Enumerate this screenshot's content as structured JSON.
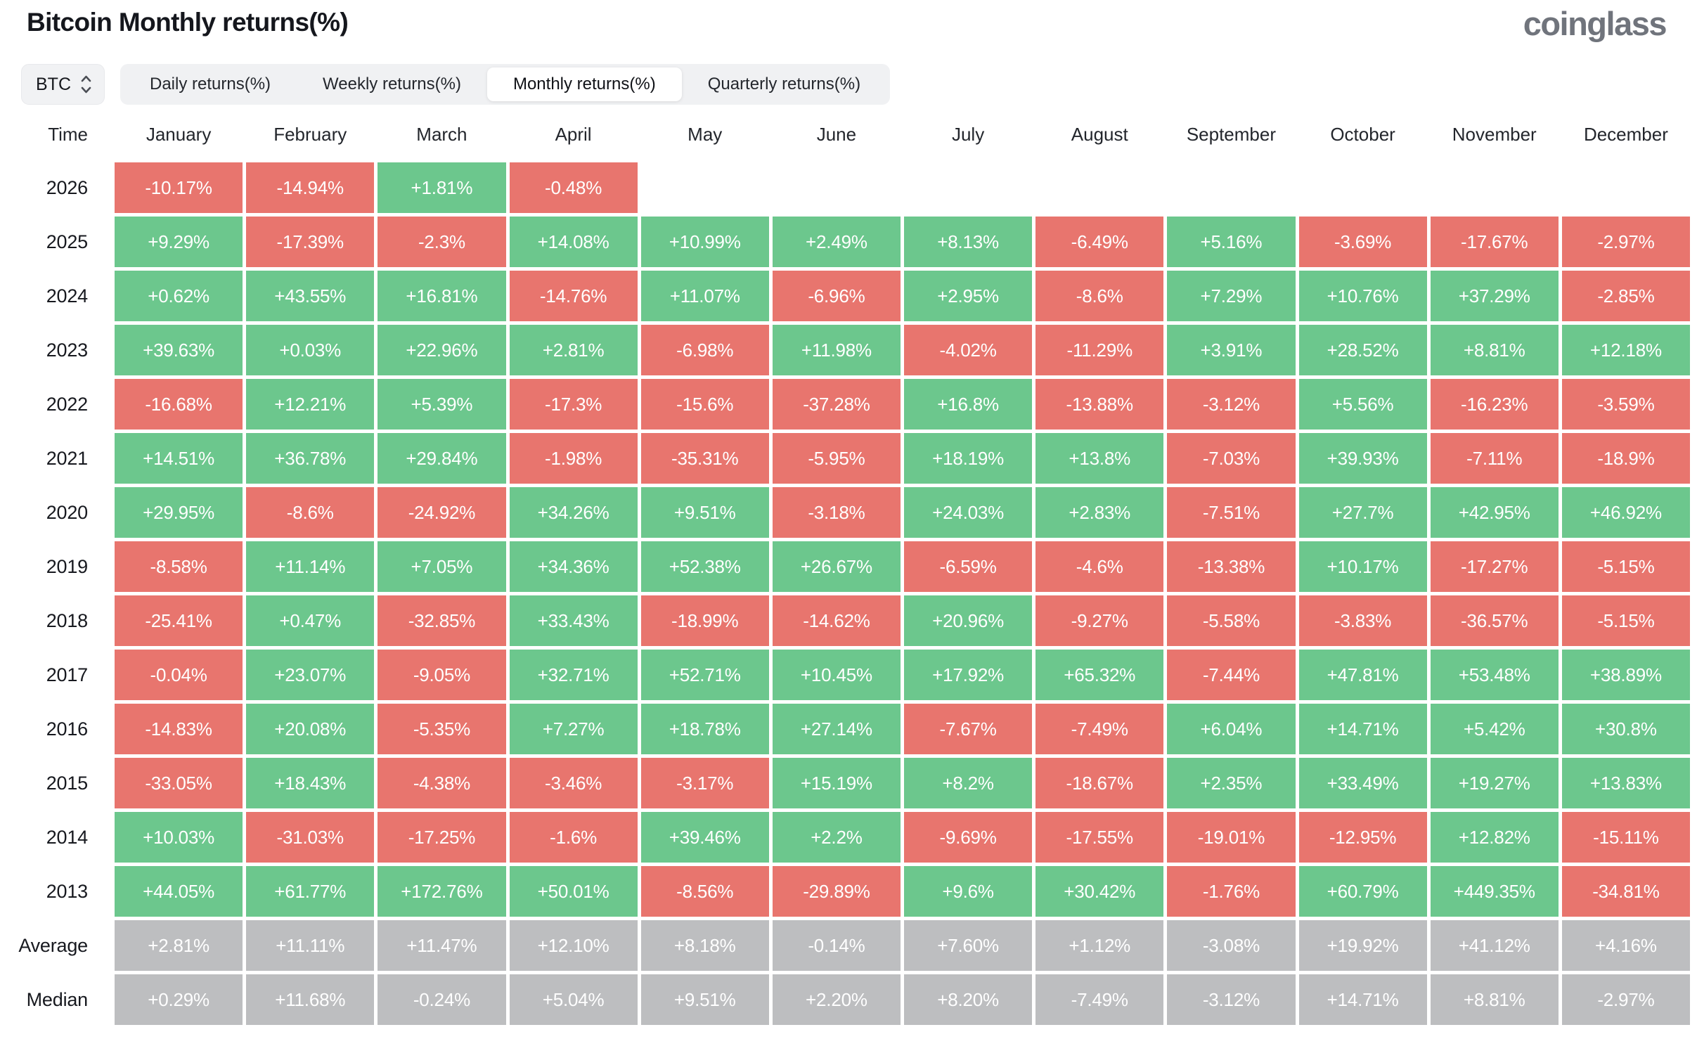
{
  "page": {
    "title": "Bitcoin Monthly returns(%)",
    "logo": "coinglass"
  },
  "controls": {
    "symbol_select": {
      "value": "BTC"
    },
    "tabs": [
      {
        "label": "Daily returns(%)",
        "active": false
      },
      {
        "label": "Weekly returns(%)",
        "active": false
      },
      {
        "label": "Monthly returns(%)",
        "active": true
      },
      {
        "label": "Quarterly returns(%)",
        "active": false
      }
    ]
  },
  "chart_data": {
    "type": "heatmap",
    "title": "Bitcoin Monthly returns(%)",
    "unit": "%",
    "colors": {
      "positive": "#6cc78d",
      "negative": "#e8756e",
      "summary": "#bdbec0"
    },
    "columns": [
      "Time",
      "January",
      "February",
      "March",
      "April",
      "May",
      "June",
      "July",
      "August",
      "September",
      "October",
      "November",
      "December"
    ],
    "rows": [
      {
        "label": "2026",
        "summary": false,
        "values": [
          "-10.17%",
          "-14.94%",
          "+1.81%",
          "-0.48%",
          "",
          "",
          "",
          "",
          "",
          "",
          "",
          ""
        ]
      },
      {
        "label": "2025",
        "summary": false,
        "values": [
          "+9.29%",
          "-17.39%",
          "-2.3%",
          "+14.08%",
          "+10.99%",
          "+2.49%",
          "+8.13%",
          "-6.49%",
          "+5.16%",
          "-3.69%",
          "-17.67%",
          "-2.97%"
        ]
      },
      {
        "label": "2024",
        "summary": false,
        "values": [
          "+0.62%",
          "+43.55%",
          "+16.81%",
          "-14.76%",
          "+11.07%",
          "-6.96%",
          "+2.95%",
          "-8.6%",
          "+7.29%",
          "+10.76%",
          "+37.29%",
          "-2.85%"
        ]
      },
      {
        "label": "2023",
        "summary": false,
        "values": [
          "+39.63%",
          "+0.03%",
          "+22.96%",
          "+2.81%",
          "-6.98%",
          "+11.98%",
          "-4.02%",
          "-11.29%",
          "+3.91%",
          "+28.52%",
          "+8.81%",
          "+12.18%"
        ]
      },
      {
        "label": "2022",
        "summary": false,
        "values": [
          "-16.68%",
          "+12.21%",
          "+5.39%",
          "-17.3%",
          "-15.6%",
          "-37.28%",
          "+16.8%",
          "-13.88%",
          "-3.12%",
          "+5.56%",
          "-16.23%",
          "-3.59%"
        ]
      },
      {
        "label": "2021",
        "summary": false,
        "values": [
          "+14.51%",
          "+36.78%",
          "+29.84%",
          "-1.98%",
          "-35.31%",
          "-5.95%",
          "+18.19%",
          "+13.8%",
          "-7.03%",
          "+39.93%",
          "-7.11%",
          "-18.9%"
        ]
      },
      {
        "label": "2020",
        "summary": false,
        "values": [
          "+29.95%",
          "-8.6%",
          "-24.92%",
          "+34.26%",
          "+9.51%",
          "-3.18%",
          "+24.03%",
          "+2.83%",
          "-7.51%",
          "+27.7%",
          "+42.95%",
          "+46.92%"
        ]
      },
      {
        "label": "2019",
        "summary": false,
        "values": [
          "-8.58%",
          "+11.14%",
          "+7.05%",
          "+34.36%",
          "+52.38%",
          "+26.67%",
          "-6.59%",
          "-4.6%",
          "-13.38%",
          "+10.17%",
          "-17.27%",
          "-5.15%"
        ]
      },
      {
        "label": "2018",
        "summary": false,
        "values": [
          "-25.41%",
          "+0.47%",
          "-32.85%",
          "+33.43%",
          "-18.99%",
          "-14.62%",
          "+20.96%",
          "-9.27%",
          "-5.58%",
          "-3.83%",
          "-36.57%",
          "-5.15%"
        ]
      },
      {
        "label": "2017",
        "summary": false,
        "values": [
          "-0.04%",
          "+23.07%",
          "-9.05%",
          "+32.71%",
          "+52.71%",
          "+10.45%",
          "+17.92%",
          "+65.32%",
          "-7.44%",
          "+47.81%",
          "+53.48%",
          "+38.89%"
        ]
      },
      {
        "label": "2016",
        "summary": false,
        "values": [
          "-14.83%",
          "+20.08%",
          "-5.35%",
          "+7.27%",
          "+18.78%",
          "+27.14%",
          "-7.67%",
          "-7.49%",
          "+6.04%",
          "+14.71%",
          "+5.42%",
          "+30.8%"
        ]
      },
      {
        "label": "2015",
        "summary": false,
        "values": [
          "-33.05%",
          "+18.43%",
          "-4.38%",
          "-3.46%",
          "-3.17%",
          "+15.19%",
          "+8.2%",
          "-18.67%",
          "+2.35%",
          "+33.49%",
          "+19.27%",
          "+13.83%"
        ]
      },
      {
        "label": "2014",
        "summary": false,
        "values": [
          "+10.03%",
          "-31.03%",
          "-17.25%",
          "-1.6%",
          "+39.46%",
          "+2.2%",
          "-9.69%",
          "-17.55%",
          "-19.01%",
          "-12.95%",
          "+12.82%",
          "-15.11%"
        ]
      },
      {
        "label": "2013",
        "summary": false,
        "values": [
          "+44.05%",
          "+61.77%",
          "+172.76%",
          "+50.01%",
          "-8.56%",
          "-29.89%",
          "+9.6%",
          "+30.42%",
          "-1.76%",
          "+60.79%",
          "+449.35%",
          "-34.81%"
        ]
      },
      {
        "label": "Average",
        "summary": true,
        "values": [
          "+2.81%",
          "+11.11%",
          "+11.47%",
          "+12.10%",
          "+8.18%",
          "-0.14%",
          "+7.60%",
          "+1.12%",
          "-3.08%",
          "+19.92%",
          "+41.12%",
          "+4.16%"
        ]
      },
      {
        "label": "Median",
        "summary": true,
        "values": [
          "+0.29%",
          "+11.68%",
          "-0.24%",
          "+5.04%",
          "+9.51%",
          "+2.20%",
          "+8.20%",
          "-7.49%",
          "-3.12%",
          "+14.71%",
          "+8.81%",
          "-2.97%"
        ]
      }
    ]
  }
}
